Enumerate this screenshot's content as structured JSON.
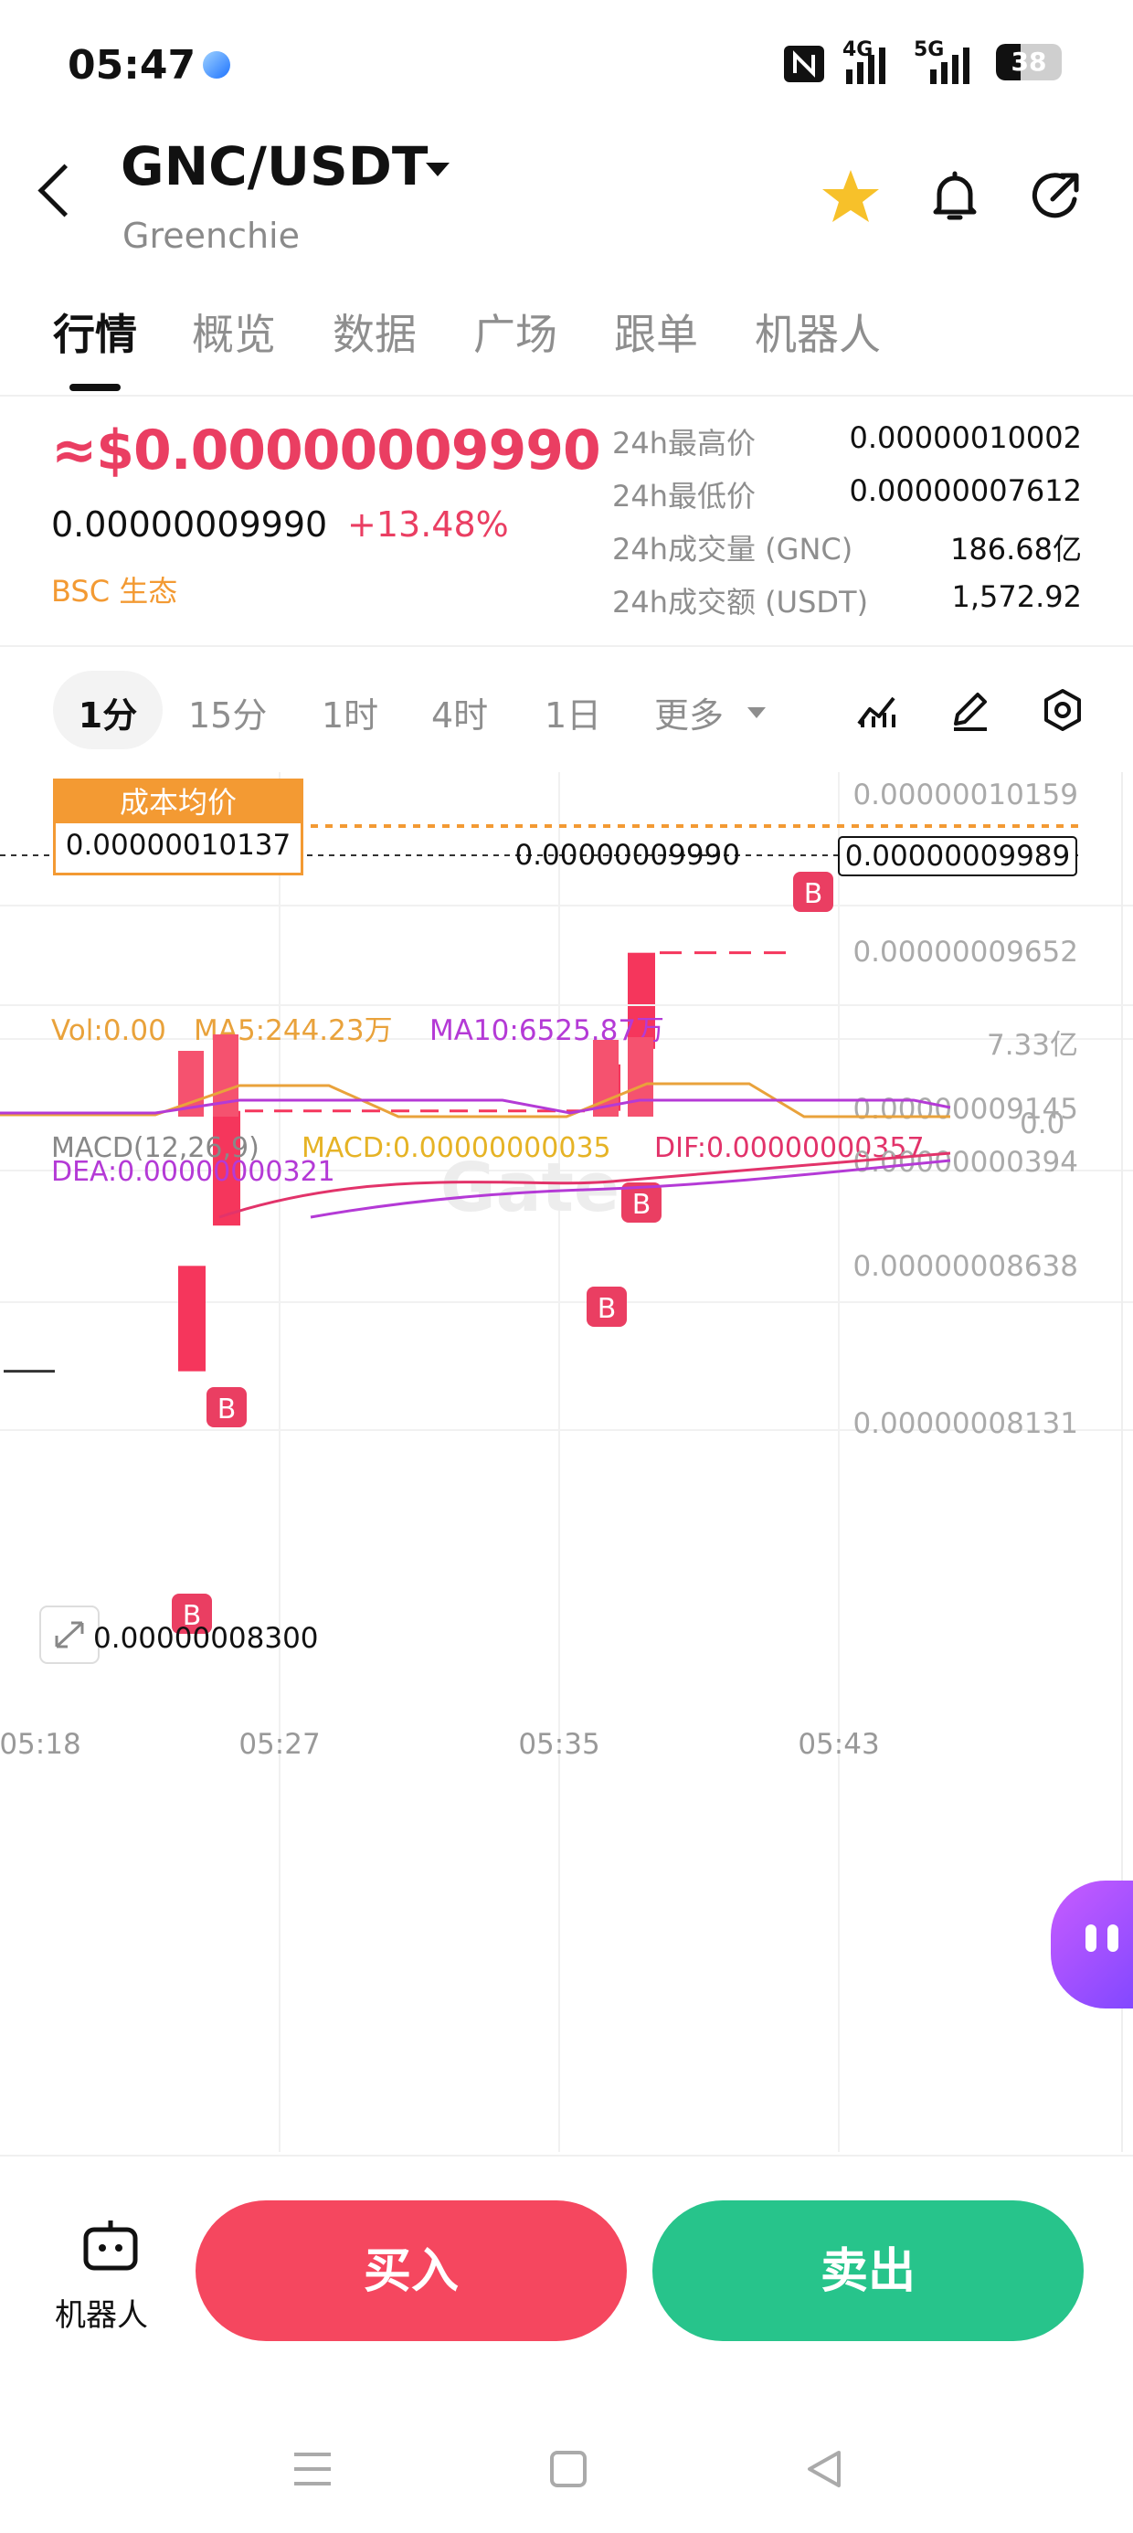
{
  "status_bar": {
    "time": "05:47",
    "net1": "4G",
    "net2": "5G",
    "battery": "38",
    "battery_level": 0.38
  },
  "header": {
    "pair": "GNC/USDT",
    "name": "Greenchie"
  },
  "tabs": [
    "行情",
    "概览",
    "数据",
    "广场",
    "跟单",
    "机器人"
  ],
  "price": {
    "usd": "≈$0.00000009990",
    "last": "0.00000009990",
    "change": "+13.48%",
    "ecosystem": "BSC 生态"
  },
  "stats": [
    {
      "label": "24h最高价",
      "value": "0.00000010002"
    },
    {
      "label": "24h最低价",
      "value": "0.00000007612"
    },
    {
      "label": "24h成交量 (GNC)",
      "value": "186.68亿"
    },
    {
      "label": "24h成交额 (USDT)",
      "value": "1,572.92"
    }
  ],
  "intervals": [
    "1分",
    "15分",
    "1时",
    "4时",
    "1日",
    "更多"
  ],
  "chart_data": {
    "type": "candlestick",
    "y_ticks": [
      "0.00000010159",
      "0.00000009652",
      "0.00000009145",
      "0.00000008638",
      "0.00000008131"
    ],
    "x_ticks": [
      "05:18",
      "05:27",
      "05:35",
      "05:43"
    ],
    "cost_avg_label": "成本均价",
    "cost_avg_value": "0.00000010137",
    "last_price_label": "0.00000009990",
    "last_price_tag": "0.00000009989",
    "low_marker_label": "0.00000008300",
    "buy_marker": "B",
    "candles": [
      {
        "time": "05:22",
        "open": 8.3e-08,
        "close": 8.64e-08,
        "dir": "up"
      },
      {
        "time": "05:23",
        "open": 8.77e-08,
        "close": 9.14e-08,
        "dir": "up"
      },
      {
        "time": "05:37",
        "open": 9.14e-08,
        "close": 9.29e-08,
        "dir": "up"
      },
      {
        "time": "05:38",
        "open": 9.34e-08,
        "close": 9.65e-08,
        "dir": "up"
      }
    ]
  },
  "volume": {
    "vol_label": "Vol:0.00",
    "ma5_label": "MA5:244.23万",
    "ma10_label": "MA10:6525.87万",
    "max_label": "7.33亿",
    "zero_label": "0.0"
  },
  "macd": {
    "title": "MACD(12,26,9)",
    "macd_label": "MACD:0.00000000035",
    "dif_label": "DIF:0.00000000357",
    "dea_label": "DEA:0.00000000321",
    "axis_label": "0.00000000394"
  },
  "colors": {
    "up": "#f5365c",
    "accent_orange": "#f39a33",
    "buy": "#f5475f",
    "sell": "#27c48b",
    "ma5": "#e9a23b",
    "ma10": "#b43ad6"
  },
  "bottom": {
    "robot_label": "机器人",
    "buy_label": "买入",
    "sell_label": "卖出"
  }
}
